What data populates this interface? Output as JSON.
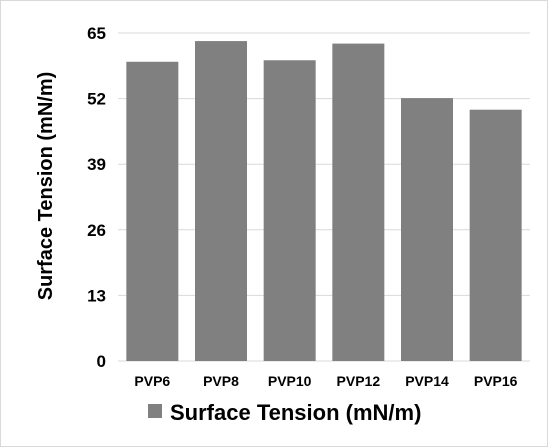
{
  "chart_data": {
    "type": "bar",
    "categories": [
      "PVP6",
      "PVP8",
      "PVP10",
      "PVP12",
      "PVP14",
      "PVP16"
    ],
    "series": [
      {
        "name": "Surface Tension (mN/m)",
        "values": [
          59.3,
          63.4,
          59.6,
          62.9,
          52.1,
          49.8
        ],
        "color": "#808080"
      }
    ],
    "ylabel": "Surface Tension (mN/m)",
    "xlabel": "",
    "ylim": [
      0,
      65
    ],
    "yticks": [
      "0",
      "13",
      "26",
      "39",
      "52",
      "65"
    ],
    "grid": true,
    "legend": "bottom"
  }
}
